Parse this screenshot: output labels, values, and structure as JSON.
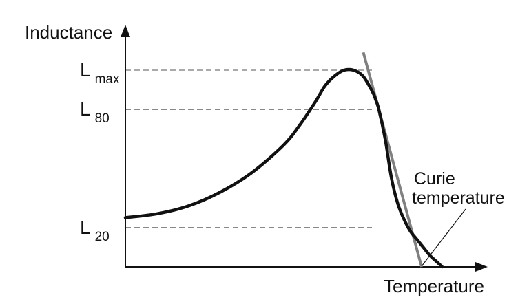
{
  "chart_data": {
    "type": "line",
    "title": "",
    "xlabel": "Temperature",
    "ylabel": "Inductance",
    "xlim": [
      0,
      100
    ],
    "ylim": [
      0,
      100
    ],
    "grid": false,
    "levels": [
      {
        "main": "L",
        "sub": "max",
        "value": 100
      },
      {
        "main": "L",
        "sub": "80",
        "value": 80
      },
      {
        "main": "L",
        "sub": "20",
        "value": 20
      }
    ],
    "series": [
      {
        "color": "#111111",
        "x": [
          0,
          10,
          20,
          30,
          40,
          50,
          55,
          60,
          63,
          66,
          69,
          72,
          75,
          78,
          79,
          80,
          82,
          84,
          86,
          88,
          90,
          92,
          94,
          96,
          98,
          100
        ],
        "y": [
          25,
          27,
          31,
          38,
          48,
          62,
          72,
          84,
          92,
          97,
          100,
          100,
          97,
          89,
          85,
          80,
          65,
          45,
          32,
          24,
          18,
          14,
          10,
          6,
          3,
          0
        ]
      }
    ],
    "tangent": {
      "color": "#808080",
      "x": [
        80,
        93.5
      ],
      "y": [
        80,
        0
      ]
    },
    "annotations": [
      {
        "lines": [
          "Curie",
          "temperature"
        ],
        "points_to_x": 93.5
      }
    ]
  }
}
